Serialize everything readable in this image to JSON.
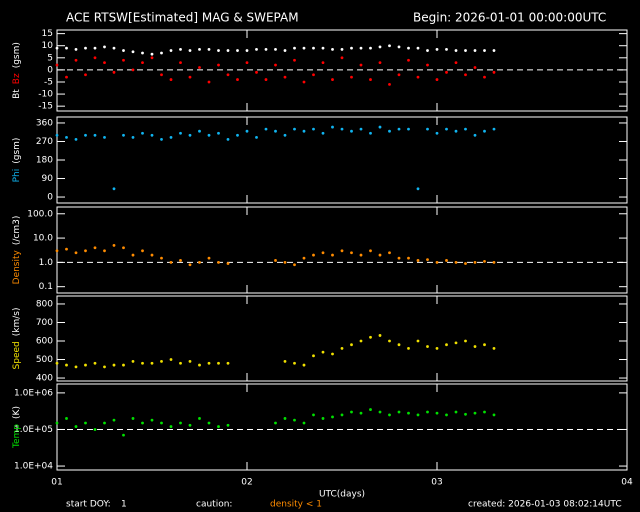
{
  "title": "ACE RTSW[Estimated] MAG & SWEPAM",
  "begin": "Begin: 2026-01-01 00:00:00UTC",
  "footer": {
    "start_doy_label": "start DOY:",
    "start_doy": 1,
    "caution": "caution:",
    "density_note": "density < 1",
    "created": "created: 2026-01-03 08:02:14UTC"
  },
  "chart_data": [
    {
      "type": "scatter",
      "ylabel": "(gsm)",
      "xlim": [
        1,
        4
      ],
      "ylim": [
        -17,
        16.5
      ],
      "yticks": [
        15,
        10,
        5,
        0,
        -5,
        -10,
        -15
      ],
      "reference_line": 0,
      "x": [
        1.0,
        1.05,
        1.1,
        1.15,
        1.2,
        1.25,
        1.3,
        1.35,
        1.4,
        1.45,
        1.5,
        1.55,
        1.6,
        1.65,
        1.7,
        1.75,
        1.8,
        1.85,
        1.9,
        1.95,
        2.0,
        2.05,
        2.1,
        2.15,
        2.2,
        2.25,
        2.3,
        2.35,
        2.4,
        2.45,
        2.5,
        2.55,
        2.6,
        2.65,
        2.7,
        2.75,
        2.8,
        2.85,
        2.9,
        2.95,
        3.0,
        3.05,
        3.1,
        3.15,
        3.2,
        3.25,
        3.3
      ],
      "series": [
        {
          "name": "Bt",
          "color": "#ffffff",
          "values": [
            9,
            9,
            8.5,
            9,
            9,
            9.5,
            9,
            8,
            7.5,
            7,
            6.5,
            7,
            8,
            8.5,
            8,
            8.5,
            8.5,
            8,
            8,
            8,
            8,
            8.5,
            8.5,
            8.5,
            8,
            9,
            9,
            9,
            9,
            8.5,
            8.5,
            9,
            9,
            9,
            9.5,
            10,
            9.5,
            9,
            9,
            8,
            8.5,
            8.5,
            8,
            8,
            8,
            8,
            8
          ]
        },
        {
          "name": "Bz",
          "color": "#ff0000",
          "values": [
            2,
            -3,
            4,
            -2,
            5,
            3,
            -1,
            4,
            0,
            3,
            5,
            -2,
            -4,
            3,
            -3,
            1,
            -5,
            2,
            -2,
            -4,
            3,
            -1,
            -4,
            2,
            -3,
            4,
            -5,
            -2,
            3,
            -4,
            5,
            -3,
            2,
            -4,
            3,
            -6,
            -2,
            4,
            -3,
            2,
            -4,
            -1,
            3,
            -2,
            1,
            -3,
            -1
          ]
        }
      ]
    },
    {
      "type": "scatter",
      "ylabel": "(gsm)",
      "xlim": [
        1,
        4
      ],
      "ylim": [
        -29,
        389
      ],
      "yticks": [
        360,
        270,
        180,
        90,
        0
      ],
      "x": [
        1.0,
        1.05,
        1.1,
        1.15,
        1.2,
        1.25,
        1.3,
        1.35,
        1.4,
        1.45,
        1.5,
        1.55,
        1.6,
        1.65,
        1.7,
        1.75,
        1.8,
        1.85,
        1.9,
        1.95,
        2.0,
        2.05,
        2.1,
        2.15,
        2.2,
        2.25,
        2.3,
        2.35,
        2.4,
        2.45,
        2.5,
        2.55,
        2.6,
        2.65,
        2.7,
        2.75,
        2.8,
        2.85,
        2.9,
        2.95,
        3.0,
        3.05,
        3.1,
        3.15,
        3.2,
        3.25,
        3.3
      ],
      "series": [
        {
          "name": "Phi",
          "color": "#10b4f0",
          "values": [
            300,
            290,
            280,
            300,
            300,
            290,
            40,
            300,
            290,
            310,
            300,
            280,
            290,
            310,
            300,
            320,
            300,
            310,
            280,
            300,
            320,
            290,
            330,
            320,
            300,
            330,
            320,
            330,
            310,
            340,
            330,
            320,
            330,
            310,
            340,
            320,
            330,
            330,
            40,
            330,
            310,
            330,
            320,
            330,
            300,
            320,
            330
          ]
        }
      ]
    },
    {
      "type": "scatter",
      "ylabel": "(/cm3)",
      "log": true,
      "xlim": [
        1,
        4
      ],
      "ylim": [
        0.055,
        190
      ],
      "yticks": [
        {
          "value": 100,
          "label": "100.0"
        },
        {
          "value": 10,
          "label": "10.0"
        },
        {
          "value": 1,
          "label": "1.0"
        },
        0.1
      ],
      "reference_line": 1,
      "x": [
        1.0,
        1.05,
        1.1,
        1.15,
        1.2,
        1.25,
        1.3,
        1.35,
        1.4,
        1.45,
        1.5,
        1.55,
        1.6,
        1.65,
        1.7,
        1.75,
        1.8,
        1.85,
        1.9,
        1.95,
        2.0,
        2.05,
        2.1,
        2.15,
        2.2,
        2.25,
        2.3,
        2.35,
        2.4,
        2.45,
        2.5,
        2.55,
        2.6,
        2.65,
        2.7,
        2.75,
        2.8,
        2.85,
        2.9,
        2.95,
        3.0,
        3.05,
        3.1,
        3.15,
        3.2,
        3.25,
        3.3
      ],
      "series": [
        {
          "name": "Density",
          "color": "#ff8c00",
          "values": [
            3,
            3.5,
            2.5,
            3,
            4,
            3,
            5,
            4,
            2,
            3,
            2,
            1.5,
            1,
            1.2,
            0.8,
            1,
            1.5,
            1,
            0.9,
            null,
            null,
            null,
            null,
            1.2,
            1,
            0.8,
            1.5,
            2,
            2.5,
            2,
            3,
            2.5,
            2,
            3,
            2,
            2.5,
            1.5,
            1.5,
            1.2,
            1.3,
            1,
            1.2,
            1,
            0.9,
            1,
            1.1,
            1
          ]
        }
      ]
    },
    {
      "type": "scatter",
      "ylabel": "(km/s)",
      "xlim": [
        1,
        4
      ],
      "ylim": [
        384,
        843
      ],
      "yticks": [
        800,
        700,
        600,
        500,
        400
      ],
      "x": [
        1.0,
        1.05,
        1.1,
        1.15,
        1.2,
        1.25,
        1.3,
        1.35,
        1.4,
        1.45,
        1.5,
        1.55,
        1.6,
        1.65,
        1.7,
        1.75,
        1.8,
        1.85,
        1.9,
        1.95,
        2.0,
        2.05,
        2.1,
        2.15,
        2.2,
        2.25,
        2.3,
        2.35,
        2.4,
        2.45,
        2.5,
        2.55,
        2.6,
        2.65,
        2.7,
        2.75,
        2.8,
        2.85,
        2.9,
        2.95,
        3.0,
        3.05,
        3.1,
        3.15,
        3.2,
        3.25,
        3.3
      ],
      "series": [
        {
          "name": "Speed",
          "color": "#f0e000",
          "values": [
            480,
            470,
            460,
            470,
            480,
            460,
            470,
            470,
            490,
            480,
            480,
            490,
            500,
            480,
            490,
            470,
            480,
            480,
            480,
            null,
            null,
            null,
            null,
            null,
            490,
            480,
            470,
            520,
            540,
            530,
            560,
            580,
            600,
            620,
            630,
            600,
            580,
            560,
            600,
            570,
            560,
            580,
            590,
            600,
            570,
            580,
            560
          ]
        }
      ]
    },
    {
      "type": "scatter",
      "ylabel": "(K)",
      "log": true,
      "xlim": [
        1,
        4
      ],
      "ylim": [
        7800,
        1750000
      ],
      "yticks": [
        {
          "value": 1000000,
          "label": "1.0E+06"
        },
        {
          "value": 100000,
          "label": "1.0E+05"
        },
        {
          "value": 10000,
          "label": "1.0E+04"
        }
      ],
      "reference_line": 100000,
      "xticks": [
        {
          "value": 1,
          "label": "01"
        },
        {
          "value": 2,
          "label": "02"
        },
        {
          "value": 3,
          "label": "03"
        },
        {
          "value": 4,
          "label": "04"
        }
      ],
      "xlabel": "UTC(days)",
      "x": [
        1.0,
        1.05,
        1.1,
        1.15,
        1.2,
        1.25,
        1.3,
        1.35,
        1.4,
        1.45,
        1.5,
        1.55,
        1.6,
        1.65,
        1.7,
        1.75,
        1.8,
        1.85,
        1.9,
        1.95,
        2.0,
        2.05,
        2.1,
        2.15,
        2.2,
        2.25,
        2.3,
        2.35,
        2.4,
        2.45,
        2.5,
        2.55,
        2.6,
        2.65,
        2.7,
        2.75,
        2.8,
        2.85,
        2.9,
        2.95,
        3.0,
        3.05,
        3.1,
        3.15,
        3.2,
        3.25,
        3.3
      ],
      "series": [
        {
          "name": "Temp",
          "color": "#00e000",
          "values": [
            150000,
            200000,
            120000,
            150000,
            100000,
            150000,
            180000,
            70000,
            200000,
            150000,
            180000,
            150000,
            120000,
            150000,
            130000,
            200000,
            150000,
            120000,
            130000,
            null,
            null,
            null,
            null,
            150000,
            200000,
            180000,
            150000,
            250000,
            200000,
            220000,
            250000,
            300000,
            280000,
            350000,
            300000,
            250000,
            300000,
            280000,
            250000,
            300000,
            280000,
            250000,
            300000,
            260000,
            280000,
            300000,
            250000
          ]
        }
      ]
    }
  ]
}
